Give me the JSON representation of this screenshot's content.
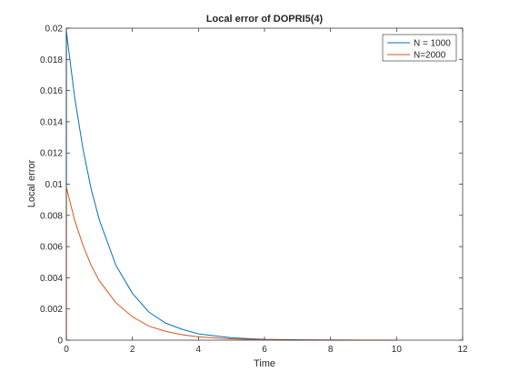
{
  "chart_data": {
    "type": "line",
    "title": "Local error of DOPRI5(4)",
    "xlabel": "Time",
    "ylabel": "Local error",
    "xlim": [
      0,
      12
    ],
    "ylim": [
      0,
      0.02
    ],
    "xticks": [
      0,
      2,
      4,
      6,
      8,
      10,
      12
    ],
    "xtick_labels": [
      "0",
      "2",
      "4",
      "6",
      "8",
      "10",
      "12"
    ],
    "yticks": [
      0,
      0.002,
      0.004,
      0.006,
      0.008,
      0.01,
      0.012,
      0.014,
      0.016,
      0.018,
      0.02
    ],
    "ytick_labels": [
      "0",
      "0.002",
      "0.004",
      "0.006",
      "0.008",
      "0.01",
      "0.012",
      "0.014",
      "0.016",
      "0.018",
      "0.02"
    ],
    "grid": false,
    "box": true,
    "legend": {
      "position": "top-right"
    },
    "series": [
      {
        "name": "N = 1000",
        "color": "#0072BD",
        "x": [
          0,
          0,
          0.25,
          0.5,
          0.75,
          1,
          1.5,
          2,
          2.5,
          3,
          3.5,
          4,
          5,
          6,
          7,
          8,
          9,
          10
        ],
        "y": [
          0,
          0.0198,
          0.0156,
          0.0123,
          0.0097,
          0.0077,
          0.0048,
          0.003,
          0.0018,
          0.0011,
          0.0007,
          0.0004,
          0.00015,
          5e-05,
          2e-05,
          1e-05,
          3e-06,
          1e-06
        ]
      },
      {
        "name": "N=2000",
        "color": "#D95319",
        "x": [
          0,
          0,
          0.25,
          0.5,
          0.75,
          1,
          1.5,
          2,
          2.5,
          3,
          3.5,
          4,
          5,
          6,
          7,
          8,
          9,
          10
        ],
        "y": [
          0,
          0.0098,
          0.0077,
          0.0061,
          0.0048,
          0.0038,
          0.0024,
          0.0015,
          0.0009,
          0.00057,
          0.00035,
          0.00021,
          8e-05,
          3e-05,
          1e-05,
          4e-06,
          2e-06,
          1e-06
        ]
      }
    ]
  }
}
